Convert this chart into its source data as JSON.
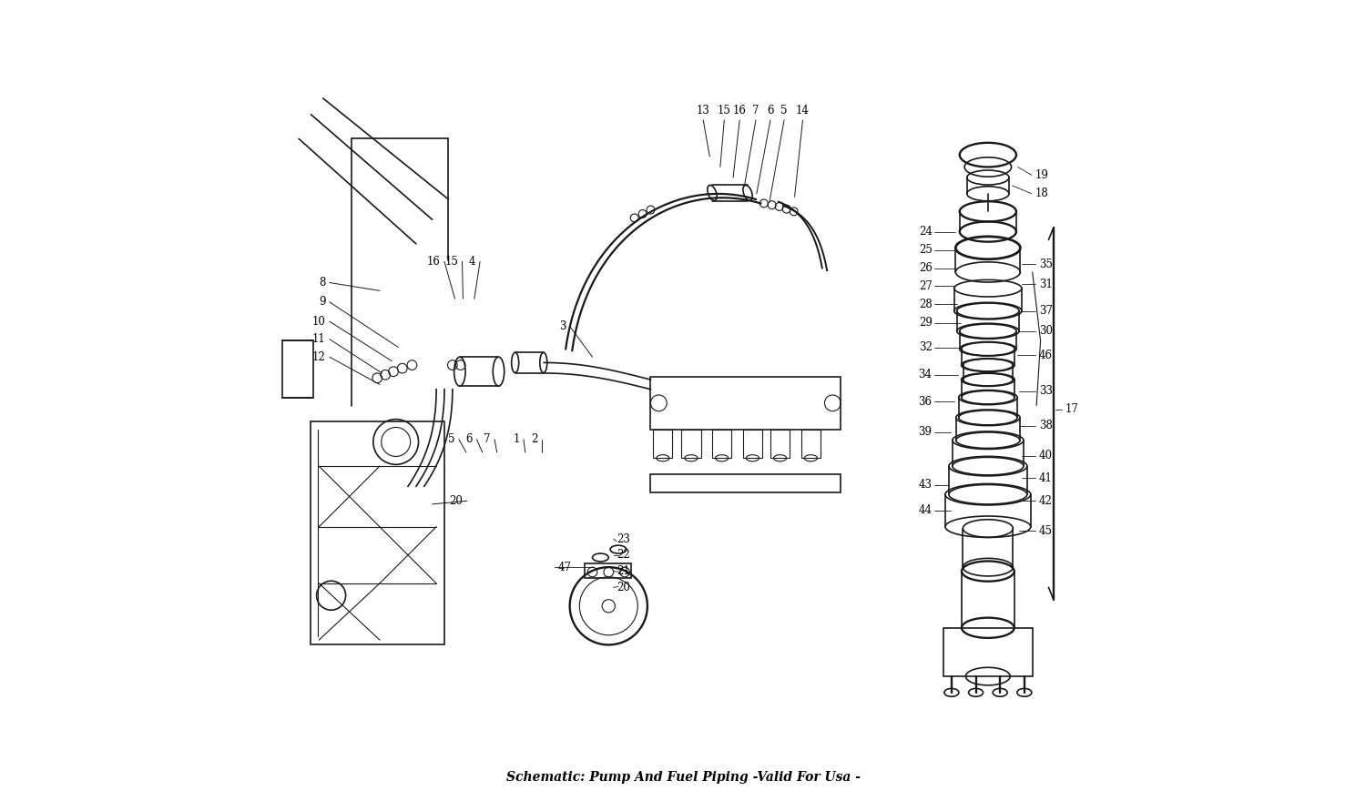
{
  "title": "Schematic: Pump And Fuel Piping -Valid For Usa -",
  "background_color": "#ffffff",
  "line_color": "#1a1a1a",
  "text_color": "#000000",
  "fig_width": 15.0,
  "fig_height": 8.91,
  "dpi": 100
}
